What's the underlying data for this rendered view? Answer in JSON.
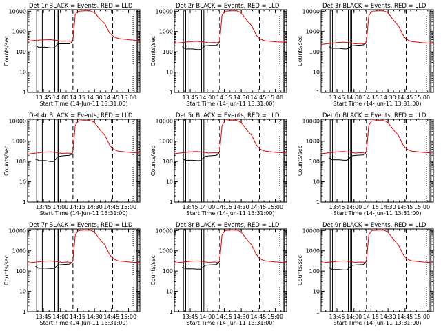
{
  "chart_data": {
    "type": "line",
    "shared": {
      "xlabel": "Start Time (14-Jun-11 13:31:00)",
      "ylabel": "Counts/sec",
      "x_ticks": [
        "13:45",
        "14:00",
        "14:15",
        "14:30",
        "14:45",
        "15:00"
      ],
      "x_tick_minutes": [
        14,
        29,
        44,
        59,
        74,
        89
      ],
      "xlim_minutes": [
        0,
        99
      ],
      "y_ticks": [
        "1",
        "10",
        "100",
        "1000",
        "10000"
      ],
      "ylim": [
        1,
        12000
      ],
      "y_scale": "log",
      "series_colors": {
        "events": "#000000",
        "lld": "#e00000"
      },
      "solid_markers_minutes": [
        8,
        10,
        13,
        24,
        26,
        27,
        96,
        97
      ],
      "dashed_markers_minutes": [
        40,
        75
      ],
      "dotted_markers_minutes": [
        93
      ]
    },
    "panels": [
      {
        "title": "Det 1r BLACK = Events, RED = LLD",
        "events": {
          "x": [
            7,
            9,
            9.5,
            16,
            20,
            23,
            27,
            31,
            37,
            39,
            40
          ],
          "y": [
            200,
            180,
            170,
            170,
            160,
            160,
            250,
            250,
            250,
            300,
            380
          ]
        },
        "lld": {
          "x": [
            0,
            5,
            10,
            15,
            20,
            25,
            30,
            35,
            39,
            40,
            41,
            42,
            44,
            45,
            50,
            55,
            58,
            60,
            62,
            65,
            68,
            70,
            72,
            74,
            76,
            78,
            80,
            85,
            90,
            95,
            99
          ],
          "y": [
            330,
            360,
            380,
            390,
            400,
            370,
            330,
            340,
            330,
            400,
            1500,
            7000,
            9500,
            10000,
            10500,
            10500,
            9000,
            7500,
            5500,
            3500,
            2500,
            1500,
            900,
            700,
            560,
            500,
            460,
            420,
            390,
            370,
            360
          ]
        }
      },
      {
        "title": "Det 2r BLACK = Events, RED = LLD",
        "events": {
          "x": [
            7,
            9,
            9.5,
            16,
            20,
            23,
            27,
            31,
            37,
            39,
            40
          ],
          "y": [
            180,
            150,
            140,
            140,
            130,
            130,
            200,
            210,
            210,
            260,
            320
          ]
        },
        "lld": {
          "x": [
            0,
            5,
            10,
            15,
            20,
            25,
            30,
            35,
            39,
            40,
            41,
            42,
            44,
            45,
            50,
            55,
            58,
            60,
            62,
            65,
            68,
            70,
            72,
            74,
            76,
            78,
            80,
            85,
            90,
            95,
            99
          ],
          "y": [
            260,
            280,
            300,
            320,
            330,
            310,
            280,
            290,
            280,
            350,
            1400,
            6500,
            9000,
            10000,
            10500,
            10500,
            9000,
            7000,
            5000,
            3000,
            2000,
            1200,
            700,
            520,
            420,
            380,
            350,
            330,
            310,
            300,
            290
          ]
        }
      },
      {
        "title": "Det 3r BLACK = Events, RED = LLD",
        "events": {
          "x": [
            7,
            9,
            9.5,
            16,
            20,
            23,
            27,
            31,
            37,
            39,
            40
          ],
          "y": [
            180,
            160,
            150,
            150,
            140,
            140,
            200,
            210,
            220,
            260,
            330
          ]
        },
        "lld": {
          "x": [
            0,
            5,
            10,
            15,
            20,
            25,
            30,
            35,
            39,
            40,
            41,
            42,
            44,
            45,
            50,
            55,
            58,
            60,
            62,
            65,
            68,
            70,
            72,
            74,
            76,
            78,
            80,
            85,
            90,
            95,
            99
          ],
          "y": [
            230,
            250,
            270,
            290,
            300,
            280,
            250,
            260,
            250,
            320,
            1300,
            6000,
            9000,
            10000,
            10500,
            10500,
            9000,
            7000,
            5000,
            3000,
            2000,
            1200,
            700,
            500,
            400,
            350,
            320,
            300,
            280,
            270,
            260
          ]
        }
      },
      {
        "title": "Det 4r BLACK = Events, RED = LLD",
        "events": {
          "x": [
            7,
            9,
            9.5,
            16,
            20,
            23,
            27,
            31,
            37,
            39,
            40
          ],
          "y": [
            130,
            120,
            110,
            110,
            100,
            100,
            180,
            190,
            200,
            230,
            300
          ]
        },
        "lld": {
          "x": [
            0,
            5,
            10,
            15,
            20,
            25,
            30,
            35,
            39,
            40,
            41,
            42,
            44,
            45,
            50,
            55,
            58,
            60,
            62,
            65,
            68,
            70,
            72,
            74,
            76,
            78,
            80,
            85,
            90,
            95,
            99
          ],
          "y": [
            230,
            250,
            270,
            290,
            300,
            280,
            250,
            260,
            250,
            320,
            1300,
            6000,
            9000,
            10000,
            10500,
            10500,
            9000,
            7000,
            5000,
            3000,
            2000,
            1200,
            700,
            500,
            400,
            350,
            320,
            300,
            280,
            270,
            260
          ]
        }
      },
      {
        "title": "Det 5r BLACK = Events, RED = LLD",
        "events": {
          "x": [
            7,
            9,
            9.5,
            16,
            20,
            23,
            27,
            31,
            37,
            39,
            40
          ],
          "y": [
            140,
            120,
            115,
            115,
            110,
            110,
            180,
            190,
            200,
            240,
            310
          ]
        },
        "lld": {
          "x": [
            0,
            5,
            10,
            15,
            20,
            25,
            30,
            35,
            39,
            40,
            41,
            42,
            44,
            45,
            50,
            55,
            58,
            60,
            62,
            65,
            68,
            70,
            72,
            74,
            76,
            78,
            80,
            85,
            90,
            95,
            99
          ],
          "y": [
            240,
            260,
            280,
            300,
            310,
            290,
            260,
            270,
            260,
            330,
            1300,
            6000,
            9000,
            10000,
            10500,
            10500,
            9000,
            7000,
            5000,
            3000,
            2000,
            1200,
            700,
            500,
            400,
            350,
            320,
            300,
            280,
            270,
            260
          ]
        }
      },
      {
        "title": "Det 6r BLACK = Events, RED = LLD",
        "events": {
          "x": [
            7,
            9,
            9.5,
            16,
            20,
            23,
            27,
            31,
            37,
            39,
            40
          ],
          "y": [
            150,
            130,
            120,
            120,
            115,
            115,
            190,
            200,
            210,
            250,
            320
          ]
        },
        "lld": {
          "x": [
            0,
            5,
            10,
            15,
            20,
            25,
            30,
            35,
            39,
            40,
            41,
            42,
            44,
            45,
            50,
            55,
            58,
            60,
            62,
            65,
            68,
            70,
            72,
            74,
            76,
            78,
            80,
            85,
            90,
            95,
            99
          ],
          "y": [
            240,
            260,
            280,
            300,
            310,
            290,
            260,
            270,
            260,
            330,
            1300,
            6000,
            9000,
            10000,
            10500,
            10500,
            9000,
            7000,
            5000,
            3000,
            2000,
            1200,
            700,
            500,
            400,
            350,
            320,
            300,
            280,
            270,
            260
          ]
        }
      },
      {
        "title": "Det 7r BLACK = Events, RED = LLD",
        "events": {
          "x": [
            7,
            9,
            9.5,
            16,
            20,
            23,
            27,
            31,
            37,
            39,
            40
          ],
          "y": [
            170,
            150,
            140,
            140,
            135,
            135,
            200,
            210,
            220,
            260,
            330
          ]
        },
        "lld": {
          "x": [
            0,
            5,
            10,
            15,
            20,
            25,
            30,
            35,
            39,
            40,
            41,
            42,
            44,
            45,
            50,
            55,
            58,
            60,
            62,
            65,
            68,
            70,
            72,
            74,
            76,
            78,
            80,
            85,
            90,
            95,
            99
          ],
          "y": [
            250,
            270,
            290,
            310,
            320,
            300,
            270,
            280,
            270,
            340,
            1300,
            6000,
            9000,
            10000,
            10500,
            10500,
            9000,
            7000,
            5000,
            3000,
            2000,
            1200,
            700,
            500,
            400,
            350,
            320,
            300,
            280,
            270,
            260
          ]
        }
      },
      {
        "title": "Det 8r BLACK = Events, RED = LLD",
        "events": {
          "x": [
            7,
            9,
            9.5,
            16,
            20,
            23,
            27,
            31,
            37,
            39,
            40
          ],
          "y": [
            160,
            140,
            130,
            130,
            125,
            125,
            190,
            200,
            210,
            250,
            320
          ]
        },
        "lld": {
          "x": [
            0,
            5,
            10,
            15,
            20,
            25,
            30,
            35,
            39,
            40,
            41,
            42,
            44,
            45,
            50,
            55,
            58,
            60,
            62,
            65,
            68,
            70,
            72,
            74,
            76,
            78,
            80,
            85,
            90,
            95,
            99
          ],
          "y": [
            250,
            270,
            290,
            310,
            320,
            300,
            270,
            280,
            270,
            340,
            1300,
            6000,
            9000,
            10000,
            10500,
            10500,
            9000,
            7000,
            5000,
            3000,
            2000,
            1200,
            700,
            500,
            400,
            350,
            320,
            300,
            280,
            270,
            260
          ]
        }
      },
      {
        "title": "Det 9r BLACK = Events, RED = LLD",
        "events": {
          "x": [
            7,
            9,
            9.5,
            16,
            20,
            23,
            27,
            31,
            37,
            39,
            40
          ],
          "y": [
            150,
            130,
            120,
            120,
            115,
            115,
            190,
            200,
            210,
            250,
            320
          ]
        },
        "lld": {
          "x": [
            0,
            5,
            10,
            15,
            20,
            25,
            30,
            35,
            39,
            40,
            41,
            42,
            44,
            45,
            50,
            55,
            58,
            60,
            62,
            65,
            68,
            70,
            72,
            74,
            76,
            78,
            80,
            85,
            90,
            95,
            99
          ],
          "y": [
            250,
            270,
            290,
            310,
            320,
            300,
            270,
            280,
            270,
            340,
            1300,
            6000,
            9000,
            10000,
            10500,
            10500,
            9000,
            7000,
            5000,
            3000,
            2000,
            1200,
            700,
            500,
            400,
            350,
            320,
            300,
            280,
            270,
            260
          ]
        }
      }
    ]
  }
}
